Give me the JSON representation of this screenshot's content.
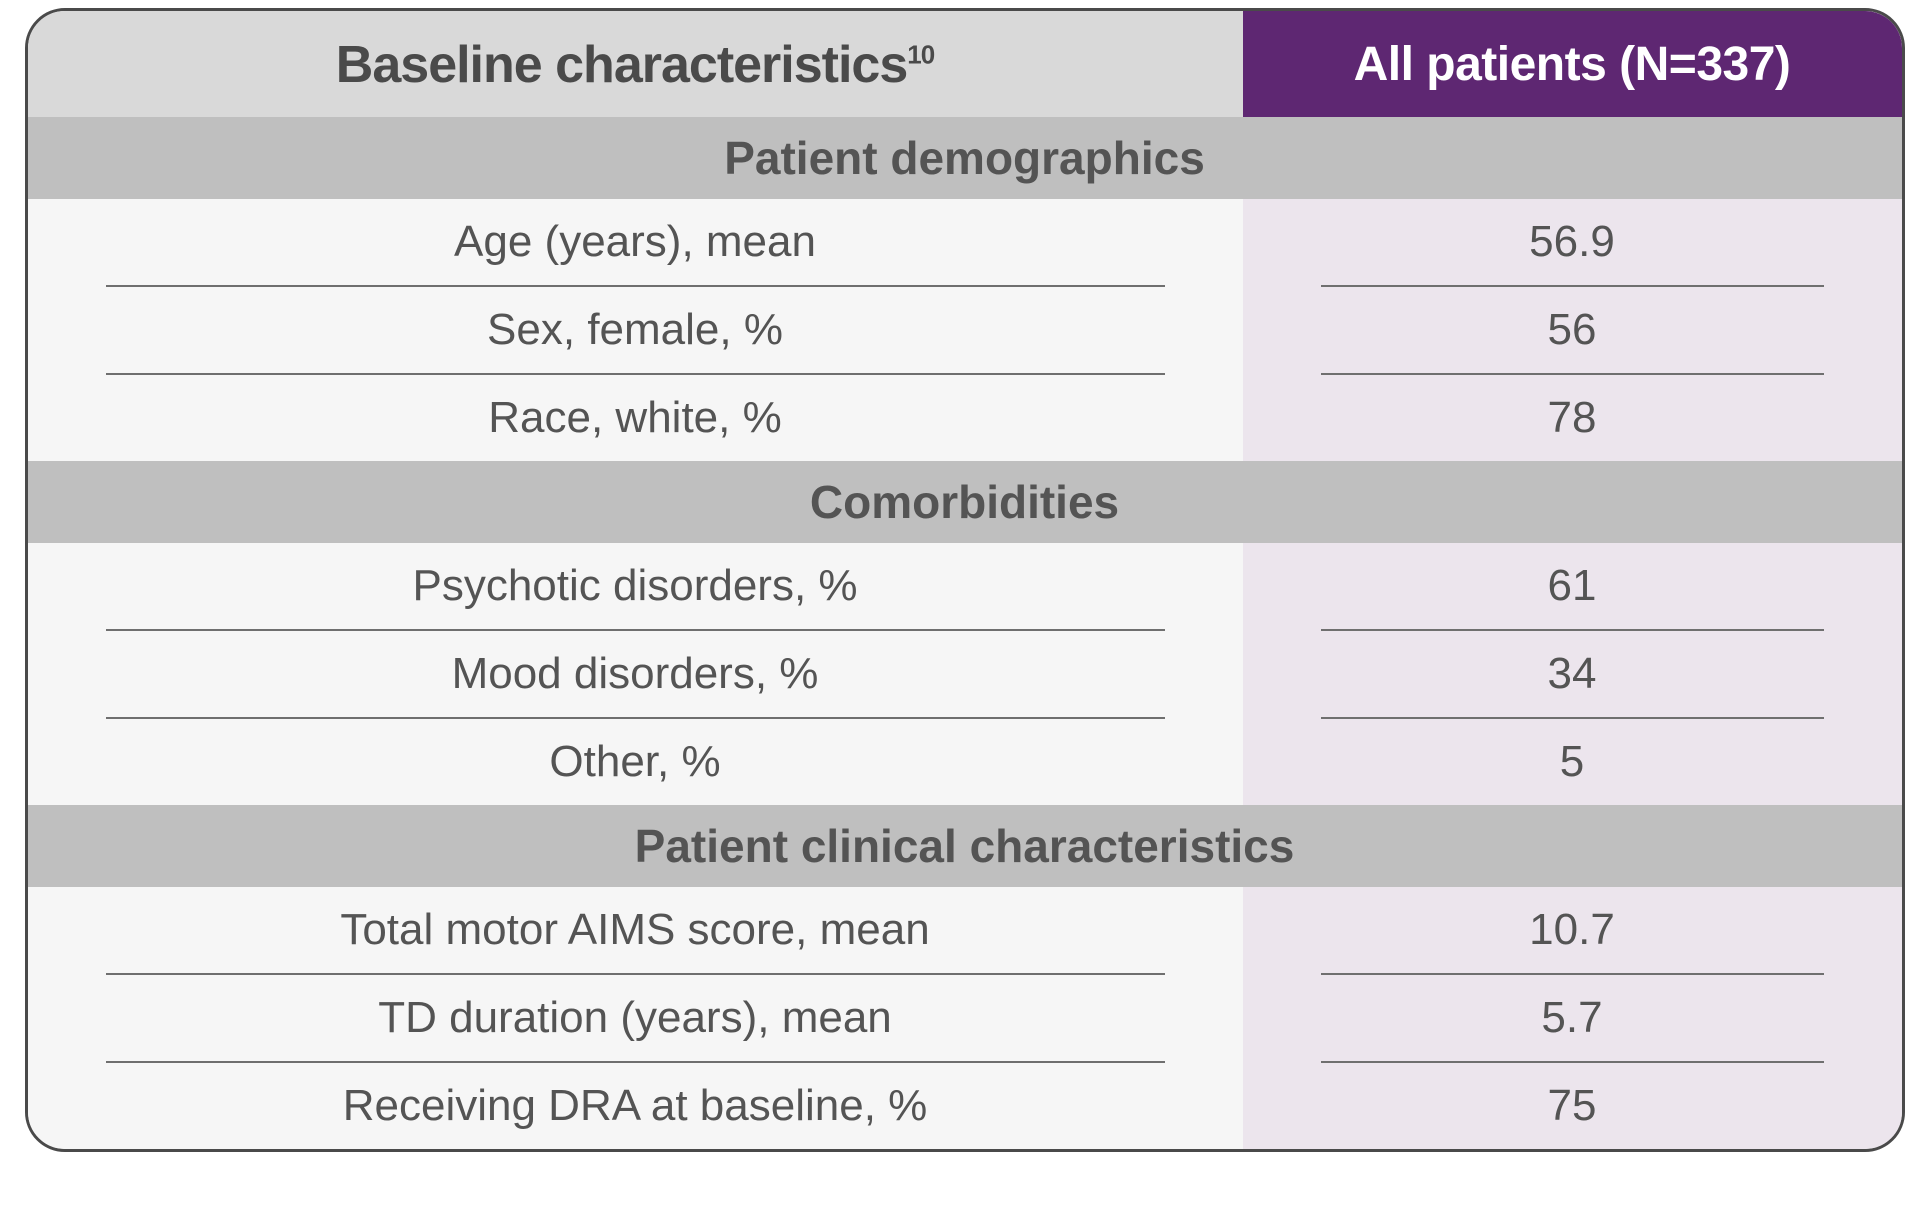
{
  "table": {
    "header": {
      "left_text": "Baseline characteristics",
      "left_super": "10",
      "right_text": "All patients (N=337)"
    },
    "colors": {
      "header_left_bg": "#d9d9d9",
      "header_right_bg": "#5e2772",
      "header_right_fg": "#ffffff",
      "section_header_bg": "#bfbfbf",
      "col_left_bg": "#f6f6f6",
      "col_right_bg": "#ece5ed",
      "border": "#4a4a4a",
      "row_divider": "#6f6f6f",
      "text": "#545454"
    },
    "sections": [
      {
        "title": "Patient demographics",
        "rows": [
          {
            "label": "Age (years), mean",
            "value": "56.9"
          },
          {
            "label": "Sex, female, %",
            "value": "56"
          },
          {
            "label": "Race, white, %",
            "value": "78"
          }
        ]
      },
      {
        "title": "Comorbidities",
        "rows": [
          {
            "label": "Psychotic disorders, %",
            "value": "61"
          },
          {
            "label": "Mood disorders, %",
            "value": "34"
          },
          {
            "label": "Other, %",
            "value": "5"
          }
        ]
      },
      {
        "title": "Patient clinical characteristics",
        "rows": [
          {
            "label": "Total motor AIMS score, mean",
            "value": "10.7"
          },
          {
            "label": "TD duration (years), mean",
            "value": "5.7"
          },
          {
            "label": "Receiving DRA at baseline, %",
            "value": "75"
          }
        ]
      }
    ]
  }
}
